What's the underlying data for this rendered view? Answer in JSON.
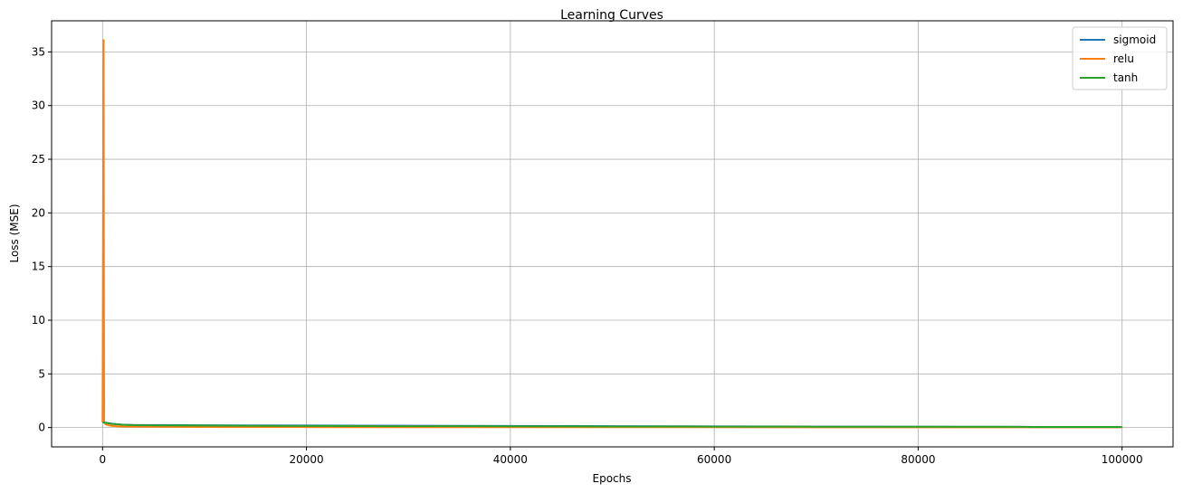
{
  "chart_data": {
    "type": "line",
    "title": "Learning Curves",
    "xlabel": "Epochs",
    "ylabel": "Loss (MSE)",
    "xlim": [
      -5000,
      105000
    ],
    "ylim": [
      -1.8,
      37.9
    ],
    "xticks": [
      0,
      20000,
      40000,
      60000,
      80000,
      100000
    ],
    "xtick_labels": [
      "0",
      "20000",
      "40000",
      "60000",
      "80000",
      "100000"
    ],
    "yticks": [
      0,
      5,
      10,
      15,
      20,
      25,
      30,
      35
    ],
    "ytick_labels": [
      "0",
      "5",
      "10",
      "15",
      "20",
      "25",
      "30",
      "35"
    ],
    "grid": true,
    "legend_position": "top-right",
    "series": [
      {
        "name": "sigmoid",
        "color": "#1f77b4",
        "x": [
          0,
          500,
          1000,
          2000,
          3000,
          5000,
          10000,
          20000,
          30000,
          40000,
          50000,
          60000,
          70000,
          80000,
          90000,
          100000
        ],
        "y": [
          0.5,
          0.42,
          0.35,
          0.27,
          0.24,
          0.23,
          0.21,
          0.19,
          0.17,
          0.15,
          0.13,
          0.11,
          0.09,
          0.08,
          0.06,
          0.05
        ]
      },
      {
        "name": "relu",
        "color": "#ff7f0e",
        "x": [
          0,
          100,
          150,
          300,
          600,
          1000,
          2000,
          5000,
          10000,
          20000,
          40000,
          60000,
          80000,
          100000
        ],
        "y": [
          0.5,
          36.1,
          0.5,
          0.3,
          0.2,
          0.15,
          0.1,
          0.07,
          0.05,
          0.04,
          0.03,
          0.03,
          0.02,
          0.02
        ]
      },
      {
        "name": "tanh",
        "color": "#2ca02c",
        "x": [
          0,
          500,
          1000,
          2000,
          3000,
          5000,
          10000,
          20000,
          30000,
          40000,
          50000,
          60000,
          70000,
          80000,
          90000,
          100000
        ],
        "y": [
          0.5,
          0.4,
          0.33,
          0.26,
          0.22,
          0.2,
          0.18,
          0.15,
          0.13,
          0.12,
          0.1,
          0.09,
          0.08,
          0.07,
          0.06,
          0.05
        ]
      }
    ]
  }
}
